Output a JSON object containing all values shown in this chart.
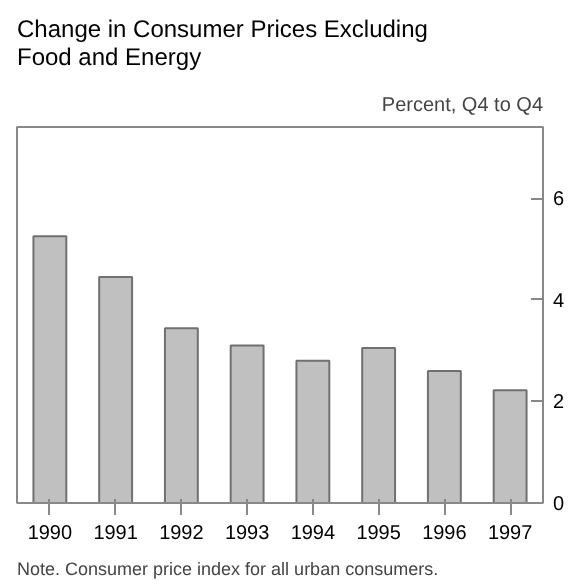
{
  "chart_data": {
    "type": "bar",
    "title": "Change in Consumer Prices Excluding Food and Energy",
    "ylabel": "Percent, Q4 to Q4",
    "categories": [
      "1990",
      "1991",
      "1992",
      "1993",
      "1994",
      "1995",
      "1996",
      "1997"
    ],
    "values": [
      5.25,
      4.45,
      3.44,
      3.1,
      2.8,
      3.05,
      2.6,
      2.22
    ],
    "color": "#c0c0c0",
    "ylim": [
      0,
      7.4
    ],
    "yticks": [
      0,
      2,
      4,
      6
    ],
    "grid": false,
    "annotations": [
      "Note.  Consumer price index for all urban consumers."
    ]
  }
}
